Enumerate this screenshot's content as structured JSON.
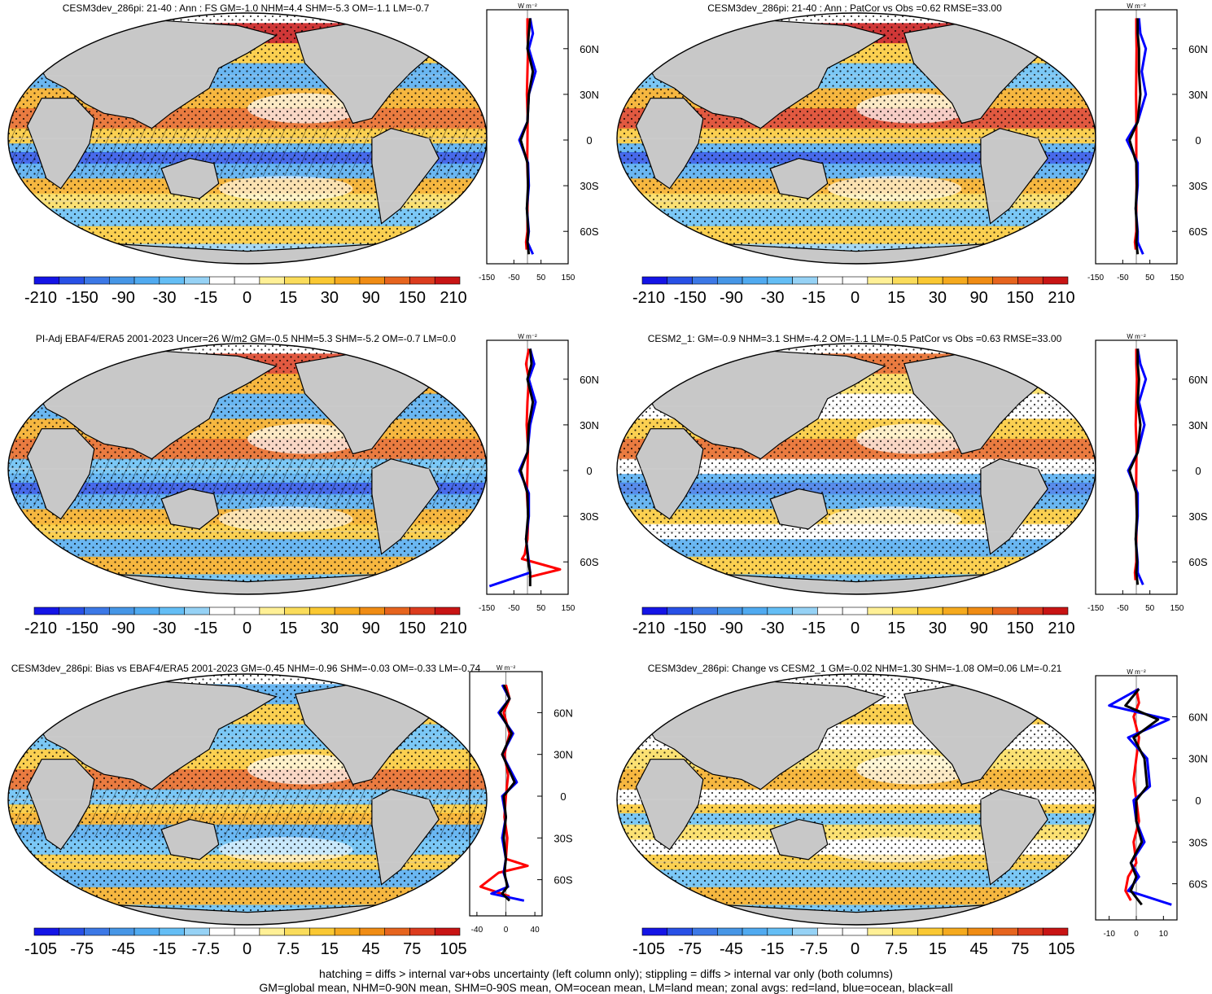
{
  "colors": {
    "land": "#c8c8c8",
    "ocean_white": "#ffffff",
    "series_land": "#ff0000",
    "series_ocean": "#0000ff",
    "series_all": "#000000",
    "palette": [
      "#1414e6",
      "#2850e6",
      "#3c78e6",
      "#4696e6",
      "#50aaf0",
      "#64bef5",
      "#96d2f5",
      "#ffffff",
      "#ffffff",
      "#fff096",
      "#fadc5a",
      "#fac832",
      "#f5aa1e",
      "#f08c14",
      "#e6641e",
      "#dc3c1e",
      "#c81414"
    ]
  },
  "lat_ticks": [
    "60N",
    "30N",
    "0",
    "30S",
    "60S"
  ],
  "zonal_axis_unit": "W m⁻²",
  "panels": [
    {
      "title": "CESM3dev_286pi: 21-40 : Ann : FS GM=-1.0 NHM=4.4 SHM=-5.3 OM=-1.1 LM=-0.7",
      "colorbar_labels": [
        "-210",
        "-150",
        "-90",
        "-30",
        "-15",
        "0",
        "15",
        "30",
        "90",
        "150",
        "210"
      ],
      "zonal_xticks": [
        "-150",
        "-50",
        "50",
        "150"
      ],
      "hatching": true
    },
    {
      "title": "CESM3dev_286pi: 21-40 : Ann : PatCor vs Obs =0.62 RMSE=33.00",
      "colorbar_labels": [
        "-210",
        "-150",
        "-90",
        "-30",
        "-15",
        "0",
        "15",
        "30",
        "90",
        "150",
        "210"
      ],
      "zonal_xticks": [
        "-150",
        "-50",
        "50",
        "150"
      ],
      "hatching": false
    },
    {
      "title": "PI-Adj EBAF4/ERA5 2001-2023 Uncer=26 W/m2 GM=-0.5 NHM=5.3 SHM=-5.2 OM=-0.7 LM=0.0",
      "colorbar_labels": [
        "-210",
        "-150",
        "-90",
        "-30",
        "-15",
        "0",
        "15",
        "30",
        "90",
        "150",
        "210"
      ],
      "zonal_xticks": [
        "-150",
        "-50",
        "50",
        "150"
      ],
      "hatching": true
    },
    {
      "title": "CESM2_1: GM=-0.9 NHM=3.1 SHM=-4.2 OM=-1.1 LM=-0.5 PatCor vs Obs =0.63 RMSE=33.00",
      "colorbar_labels": [
        "-210",
        "-150",
        "-90",
        "-30",
        "-15",
        "0",
        "15",
        "30",
        "90",
        "150",
        "210"
      ],
      "zonal_xticks": [
        "-150",
        "-50",
        "50",
        "150"
      ],
      "hatching": false
    },
    {
      "title": "CESM3dev_286pi: Bias vs EBAF4/ERA5 2001-2023 GM=-0.45 NHM=-0.96 SHM=-0.03 OM=-0.33 LM=-0.74",
      "colorbar_labels": [
        "-105",
        "-75",
        "-45",
        "-15",
        "-7.5",
        "0",
        "7.5",
        "15",
        "45",
        "75",
        "105"
      ],
      "zonal_xticks": [
        "-40",
        "0",
        "40"
      ],
      "hatching": true
    },
    {
      "title": "CESM3dev_286pi: Change vs CESM2_1 GM=-0.02 NHM=1.30 SHM=-1.08 OM=0.06 LM=-0.21",
      "colorbar_labels": [
        "-105",
        "-75",
        "-45",
        "-15",
        "-7.5",
        "0",
        "7.5",
        "15",
        "45",
        "75",
        "105"
      ],
      "zonal_xticks": [
        "-10",
        "0",
        "10"
      ],
      "hatching": false
    }
  ],
  "chart_data": [
    {
      "type": "line",
      "ylabel": "",
      "xlabel": "W m⁻²",
      "xlim": [
        -150,
        150
      ],
      "ylim": [
        -90,
        90
      ],
      "series": [
        {
          "name": "land",
          "x": [
            0,
            0,
            2,
            0,
            -2,
            1,
            0,
            -1,
            2,
            0,
            0,
            -5,
            -3
          ],
          "y": [
            80,
            70,
            60,
            45,
            30,
            15,
            0,
            -15,
            -30,
            -45,
            -60,
            -67,
            -72
          ]
        },
        {
          "name": "ocean",
          "x": [
            10,
            20,
            5,
            30,
            5,
            0,
            -30,
            2,
            5,
            -2,
            5,
            0,
            20
          ],
          "y": [
            80,
            70,
            60,
            45,
            30,
            12,
            0,
            -15,
            -30,
            -45,
            -60,
            -67,
            -75
          ]
        },
        {
          "name": "all",
          "x": [
            10,
            5,
            0,
            20,
            5,
            0,
            -25,
            0,
            2,
            -2,
            3,
            0,
            5
          ],
          "y": [
            80,
            70,
            60,
            45,
            30,
            12,
            0,
            -15,
            -30,
            -45,
            -60,
            -67,
            -75
          ]
        }
      ]
    },
    {
      "type": "line",
      "ylabel": "",
      "xlabel": "W m⁻²",
      "xlim": [
        -150,
        150
      ],
      "ylim": [
        -90,
        90
      ],
      "series": [
        {
          "name": "land",
          "x": [
            0,
            0,
            1,
            0,
            -1,
            0,
            0,
            0,
            1,
            0,
            0,
            -5,
            -2
          ],
          "y": [
            80,
            70,
            60,
            45,
            30,
            15,
            0,
            -15,
            -30,
            -45,
            -60,
            -67,
            -72
          ]
        },
        {
          "name": "ocean",
          "x": [
            10,
            15,
            35,
            20,
            35,
            5,
            -35,
            5,
            5,
            -2,
            5,
            5,
            25
          ],
          "y": [
            80,
            70,
            60,
            45,
            30,
            12,
            0,
            -15,
            -30,
            -45,
            -60,
            -67,
            -75
          ]
        },
        {
          "name": "all",
          "x": [
            5,
            5,
            10,
            10,
            15,
            5,
            -25,
            0,
            2,
            -2,
            3,
            0,
            5
          ],
          "y": [
            80,
            70,
            60,
            45,
            30,
            12,
            0,
            -15,
            -30,
            -45,
            -60,
            -67,
            -75
          ]
        }
      ]
    },
    {
      "type": "line",
      "ylabel": "",
      "xlabel": "W m⁻²",
      "xlim": [
        -150,
        150
      ],
      "ylim": [
        -90,
        90
      ],
      "series": [
        {
          "name": "land",
          "x": [
            5,
            -5,
            5,
            0,
            -3,
            2,
            0,
            -2,
            3,
            0,
            -10,
            -20,
            120,
            5
          ],
          "y": [
            80,
            70,
            60,
            45,
            30,
            15,
            0,
            -15,
            -30,
            -45,
            -55,
            -58,
            -65,
            -70
          ]
        },
        {
          "name": "ocean",
          "x": [
            10,
            25,
            5,
            30,
            10,
            0,
            -30,
            5,
            5,
            -5,
            5,
            10,
            -140
          ],
          "y": [
            80,
            70,
            60,
            45,
            30,
            12,
            0,
            -15,
            -30,
            -45,
            -60,
            -67,
            -76
          ]
        },
        {
          "name": "all",
          "x": [
            10,
            15,
            0,
            20,
            5,
            0,
            -25,
            0,
            2,
            -5,
            3,
            10,
            10
          ],
          "y": [
            80,
            70,
            60,
            45,
            30,
            12,
            0,
            -15,
            -30,
            -45,
            -60,
            -67,
            -76
          ]
        }
      ]
    },
    {
      "type": "line",
      "ylabel": "",
      "xlabel": "W m⁻²",
      "xlim": [
        -150,
        150
      ],
      "ylim": [
        -90,
        90
      ],
      "series": [
        {
          "name": "land",
          "x": [
            0,
            0,
            2,
            0,
            -2,
            1,
            0,
            -1,
            2,
            0,
            0,
            -5,
            -3
          ],
          "y": [
            80,
            70,
            60,
            45,
            30,
            15,
            0,
            -15,
            -30,
            -45,
            -60,
            -67,
            -72
          ]
        },
        {
          "name": "ocean",
          "x": [
            5,
            15,
            35,
            10,
            30,
            5,
            -30,
            5,
            5,
            -2,
            5,
            5,
            25
          ],
          "y": [
            80,
            70,
            60,
            45,
            30,
            12,
            0,
            -15,
            -30,
            -45,
            -60,
            -67,
            -75
          ]
        },
        {
          "name": "all",
          "x": [
            5,
            5,
            10,
            5,
            15,
            5,
            -25,
            0,
            2,
            -2,
            3,
            0,
            5
          ],
          "y": [
            80,
            70,
            60,
            45,
            30,
            12,
            0,
            -15,
            -30,
            -45,
            -60,
            -67,
            -75
          ]
        }
      ]
    },
    {
      "type": "line",
      "ylabel": "",
      "xlabel": "W m⁻²",
      "xlim": [
        -50,
        50
      ],
      "ylim": [
        -90,
        90
      ],
      "series": [
        {
          "name": "land",
          "x": [
            0,
            5,
            -3,
            5,
            -2,
            3,
            0,
            -2,
            2,
            0,
            30,
            -10,
            -35,
            5
          ],
          "y": [
            80,
            70,
            60,
            45,
            30,
            15,
            0,
            -15,
            -30,
            -45,
            -50,
            -55,
            -65,
            -72
          ]
        },
        {
          "name": "ocean",
          "x": [
            -5,
            5,
            -10,
            10,
            -5,
            15,
            -5,
            0,
            -5,
            0,
            -3,
            3,
            -20,
            25
          ],
          "y": [
            80,
            70,
            60,
            45,
            30,
            10,
            0,
            -15,
            -30,
            -45,
            -55,
            -65,
            -70,
            -75
          ]
        },
        {
          "name": "all",
          "x": [
            -3,
            5,
            -8,
            8,
            -5,
            12,
            -3,
            0,
            -3,
            0,
            -2,
            2,
            -5,
            5
          ],
          "y": [
            80,
            70,
            60,
            45,
            30,
            10,
            0,
            -15,
            -30,
            -45,
            -55,
            -65,
            -70,
            -75
          ]
        }
      ]
    },
    {
      "type": "line",
      "ylabel": "",
      "xlabel": "W m⁻²",
      "xlim": [
        -15,
        15
      ],
      "ylim": [
        -90,
        90
      ],
      "series": [
        {
          "name": "land",
          "x": [
            0,
            1,
            -1,
            1,
            0,
            -1,
            0,
            1,
            -1,
            0,
            -3,
            -4,
            -2
          ],
          "y": [
            80,
            70,
            60,
            45,
            30,
            15,
            0,
            -15,
            -30,
            -45,
            -55,
            -65,
            -72
          ]
        },
        {
          "name": "ocean",
          "x": [
            1,
            -10,
            12,
            -3,
            4,
            5,
            -1,
            0,
            3,
            -2,
            1,
            -3,
            13
          ],
          "y": [
            80,
            68,
            58,
            45,
            30,
            10,
            0,
            -15,
            -30,
            -45,
            -55,
            -65,
            -75
          ]
        },
        {
          "name": "all",
          "x": [
            1,
            -4,
            8,
            -1,
            3,
            4,
            0,
            0,
            2,
            -2,
            0,
            -2,
            2
          ],
          "y": [
            80,
            68,
            58,
            45,
            30,
            10,
            0,
            -15,
            -30,
            -45,
            -55,
            -65,
            -75
          ]
        }
      ]
    }
  ],
  "footer": {
    "line1": "hatching = diffs > internal var+obs uncertainty (left column only); stippling = diffs > internal var only (both columns)",
    "line2": "GM=global mean, NHM=0-90N mean, SHM=0-90S mean, OM=ocean mean, LM=land mean; zonal avgs: red=land, blue=ocean, black=all"
  }
}
